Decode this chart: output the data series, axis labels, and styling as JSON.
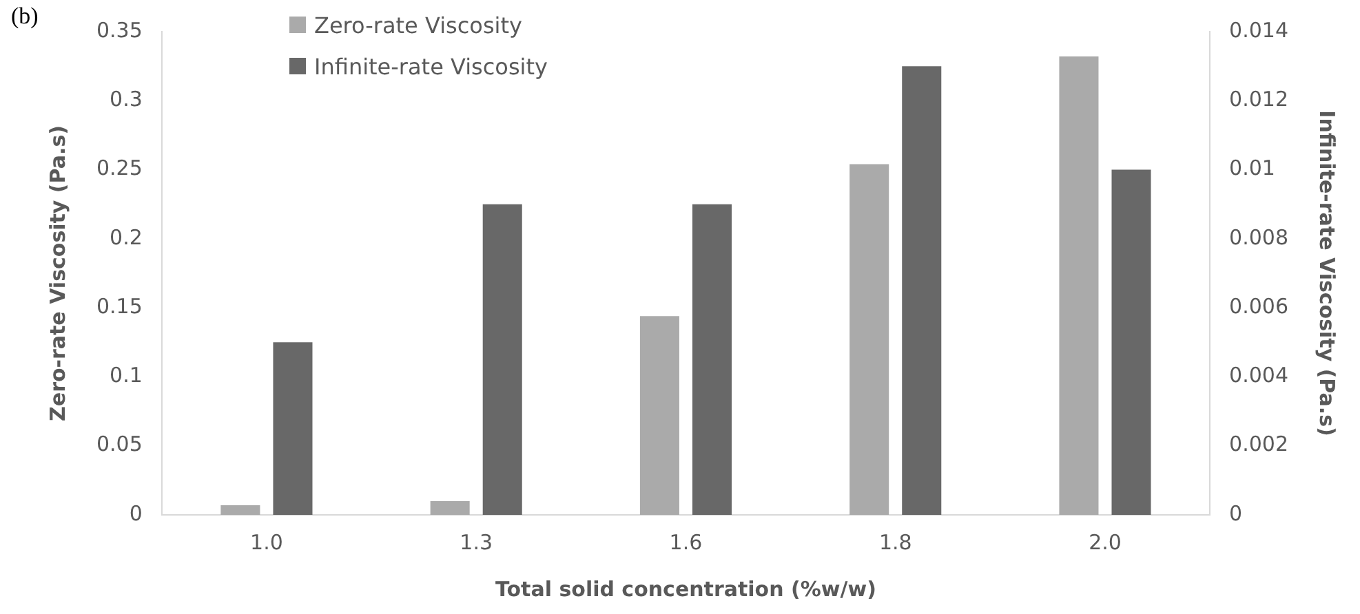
{
  "chart_data": {
    "type": "bar",
    "xlabel": "Total solid concentration (%w/w)",
    "ylabel": "Zero-rate Viscosity (Pa.s)",
    "y2label": "Infinite-rate Viscosity (Pa.s)",
    "categories": [
      "1.0",
      "1.3",
      "1.6",
      "1.8",
      "2.0"
    ],
    "series": [
      {
        "name": "Zero-rate Viscosity",
        "color": "#aaaaaa",
        "values": [
          0.007,
          0.01,
          0.144,
          0.254,
          0.332
        ]
      },
      {
        "name": "Infinite-rate Viscosity",
        "color": "#686868",
        "values": [
          0.005,
          0.009,
          0.009,
          0.013,
          0.01
        ],
        "axis": "y2"
      }
    ],
    "ylim": [
      0,
      0.35
    ],
    "yticks": [
      0,
      0.05,
      0.1,
      0.15,
      0.2,
      0.25,
      0.3,
      0.35
    ],
    "y2lim": [
      0,
      0.014
    ],
    "y2ticks": [
      0,
      0.002,
      0.004,
      0.006,
      0.008,
      0.01,
      0.012,
      0.014
    ],
    "legend": "top left",
    "grid": false,
    "annotations": [
      "(b)"
    ]
  }
}
